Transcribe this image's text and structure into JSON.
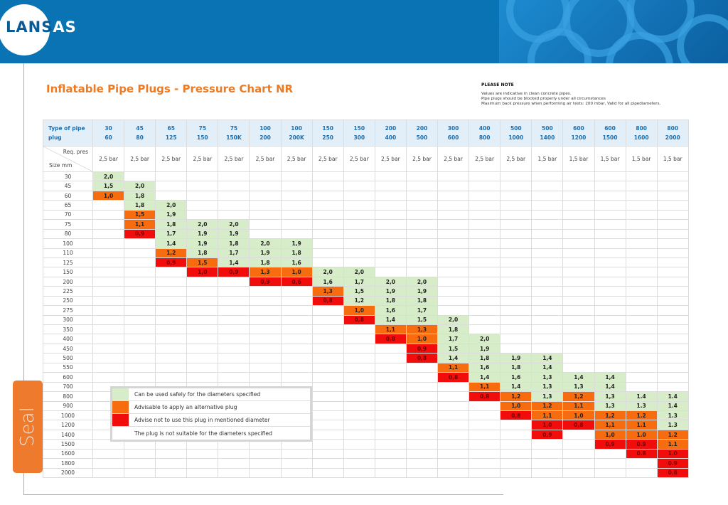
{
  "brand": {
    "logo_text": "LANSAS"
  },
  "title": "Inflatable Pipe Plugs - Pressure Chart NR",
  "note": {
    "heading": "PLEASE NOTE",
    "lines": [
      "Values are indicative in clean concrete pipes.",
      "Pipe plugs should be blocked properly under all circumstances",
      "Maximum back pressure when performing air tests: 200 mbar, Valid for all pipediameters."
    ]
  },
  "side_tab": "Seal",
  "colors": {
    "g": "#d7ecc8",
    "o": "#f76c0f",
    "r": "#f20d0d",
    "brand": "#0a73b3",
    "accent": "#ee7a22"
  },
  "table": {
    "type_label": "Type of pipe plug",
    "req_label": "Req. pres",
    "size_label": "Size mm",
    "columns": [
      [
        "30",
        "60"
      ],
      [
        "45",
        "80"
      ],
      [
        "65",
        "125"
      ],
      [
        "75",
        "150"
      ],
      [
        "75",
        "150K"
      ],
      [
        "100",
        "200"
      ],
      [
        "100",
        "200K"
      ],
      [
        "150",
        "250"
      ],
      [
        "150",
        "300"
      ],
      [
        "200",
        "400"
      ],
      [
        "200",
        "500"
      ],
      [
        "300",
        "600"
      ],
      [
        "400",
        "800"
      ],
      [
        "500",
        "1000"
      ],
      [
        "500",
        "1400"
      ],
      [
        "600",
        "1200"
      ],
      [
        "600",
        "1500"
      ],
      [
        "800",
        "1600"
      ],
      [
        "800",
        "2000"
      ]
    ],
    "pressures": [
      "2,5 bar",
      "2,5 bar",
      "2,5 bar",
      "2,5 bar",
      "2,5 bar",
      "2,5 bar",
      "2,5 bar",
      "2,5 bar",
      "2,5 bar",
      "2,5 bar",
      "2,5 bar",
      "2,5 bar",
      "2,5 bar",
      "2,5 bar",
      "1,5 bar",
      "1,5 bar",
      "1,5 bar",
      "1,5 bar",
      "1,5 bar"
    ],
    "rows": [
      {
        "size": "30",
        "start": 0,
        "cells": [
          "g2,0"
        ]
      },
      {
        "size": "45",
        "start": 0,
        "cells": [
          "g1,5",
          "g2,0"
        ]
      },
      {
        "size": "60",
        "start": 0,
        "cells": [
          "o1,0",
          "g1,8"
        ]
      },
      {
        "size": "65",
        "start": 1,
        "cells": [
          "g1,8",
          "g2,0"
        ]
      },
      {
        "size": "70",
        "start": 1,
        "cells": [
          "o1,5",
          "g1,9"
        ]
      },
      {
        "size": "75",
        "start": 1,
        "cells": [
          "o1,1",
          "g1,8",
          "g2,0",
          "g2,0"
        ]
      },
      {
        "size": "80",
        "start": 1,
        "cells": [
          "r0,9",
          "g1,7",
          "g1,9",
          "g1,9"
        ]
      },
      {
        "size": "100",
        "start": 2,
        "cells": [
          "g1,4",
          "g1,9",
          "g1,8",
          "g2,0",
          "g1,9"
        ]
      },
      {
        "size": "110",
        "start": 2,
        "cells": [
          "o1,2",
          "g1,8",
          "g1,7",
          "g1,9",
          "g1,8"
        ]
      },
      {
        "size": "125",
        "start": 2,
        "cells": [
          "r0,9",
          "o1,5",
          "g1,4",
          "g1,8",
          "g1,6"
        ]
      },
      {
        "size": "150",
        "start": 3,
        "cells": [
          "r1,0",
          "r0,9",
          "o1,3",
          "o1,0",
          "g2,0",
          "g2,0"
        ]
      },
      {
        "size": "200",
        "start": 5,
        "cells": [
          "r0,9",
          "r0,6",
          "g1,6",
          "g1,7",
          "g2,0",
          "g2,0"
        ]
      },
      {
        "size": "225",
        "start": 7,
        "cells": [
          "o1,3",
          "g1,5",
          "g1,9",
          "g1,9"
        ]
      },
      {
        "size": "250",
        "start": 7,
        "cells": [
          "r0,8",
          "g1,2",
          "g1,8",
          "g1,8"
        ]
      },
      {
        "size": "275",
        "start": 8,
        "cells": [
          "o1,0",
          "g1,6",
          "g1,7"
        ]
      },
      {
        "size": "300",
        "start": 8,
        "cells": [
          "r0,8",
          "g1,4",
          "g1,5",
          "g2,0"
        ]
      },
      {
        "size": "350",
        "start": 9,
        "cells": [
          "o1,1",
          "o1,3",
          "g1,8"
        ]
      },
      {
        "size": "400",
        "start": 9,
        "cells": [
          "r0,8",
          "o1,0",
          "g1,7",
          "g2,0"
        ]
      },
      {
        "size": "450",
        "start": 10,
        "cells": [
          "r0,9",
          "g1,5",
          "g1,9"
        ]
      },
      {
        "size": "500",
        "start": 10,
        "cells": [
          "r0,8",
          "g1,4",
          "g1,8",
          "g1,9",
          "g1,4"
        ]
      },
      {
        "size": "550",
        "start": 11,
        "cells": [
          "o1,1",
          "g1,6",
          "g1,8",
          "g1,4"
        ]
      },
      {
        "size": "600",
        "start": 11,
        "cells": [
          "r0,8",
          "g1,4",
          "g1,6",
          "g1,3",
          "g1,4",
          "g1,4"
        ]
      },
      {
        "size": "700",
        "start": 12,
        "cells": [
          "o1,1",
          "g1,4",
          "g1,3",
          "g1,3",
          "g1,4"
        ]
      },
      {
        "size": "800",
        "start": 12,
        "cells": [
          "r0,8",
          "o1,2",
          "g1,3",
          "o1,2",
          "g1,3",
          "g1.4",
          "g1.4"
        ]
      },
      {
        "size": "900",
        "start": 13,
        "cells": [
          "o1,0",
          "o1,2",
          "o1,1",
          "g1,3",
          "g1.3",
          "g1.4"
        ]
      },
      {
        "size": "1000",
        "start": 13,
        "cells": [
          "r0,8",
          "o1,1",
          "o1,0",
          "o1,2",
          "o1.2",
          "g1.3"
        ]
      },
      {
        "size": "1200",
        "start": 14,
        "cells": [
          "r1,0",
          "r0,8",
          "o1,1",
          "o1.1",
          "g1.3"
        ]
      },
      {
        "size": "1400",
        "start": 14,
        "cells": [
          "r0,9",
          "-",
          "o1,0",
          "o1.0",
          "o1.2"
        ]
      },
      {
        "size": "1500",
        "start": 16,
        "cells": [
          "r0,9",
          "r0.9",
          "o1.1"
        ]
      },
      {
        "size": "1600",
        "start": 17,
        "cells": [
          "r0.8",
          "r1.0"
        ]
      },
      {
        "size": "1800",
        "start": 18,
        "cells": [
          "r0.9"
        ]
      },
      {
        "size": "2000",
        "start": 18,
        "cells": [
          "r0.8"
        ]
      }
    ]
  },
  "legend": [
    {
      "color": "g",
      "label": "Can be used safely for the diameters specified"
    },
    {
      "color": "o",
      "label": "Advisable to apply an alternative plug"
    },
    {
      "color": "r",
      "label": "Advise not to use this plug in mentioned diameter"
    },
    {
      "color": "w",
      "label": "The plug is not suitable for the diameters specified"
    }
  ]
}
